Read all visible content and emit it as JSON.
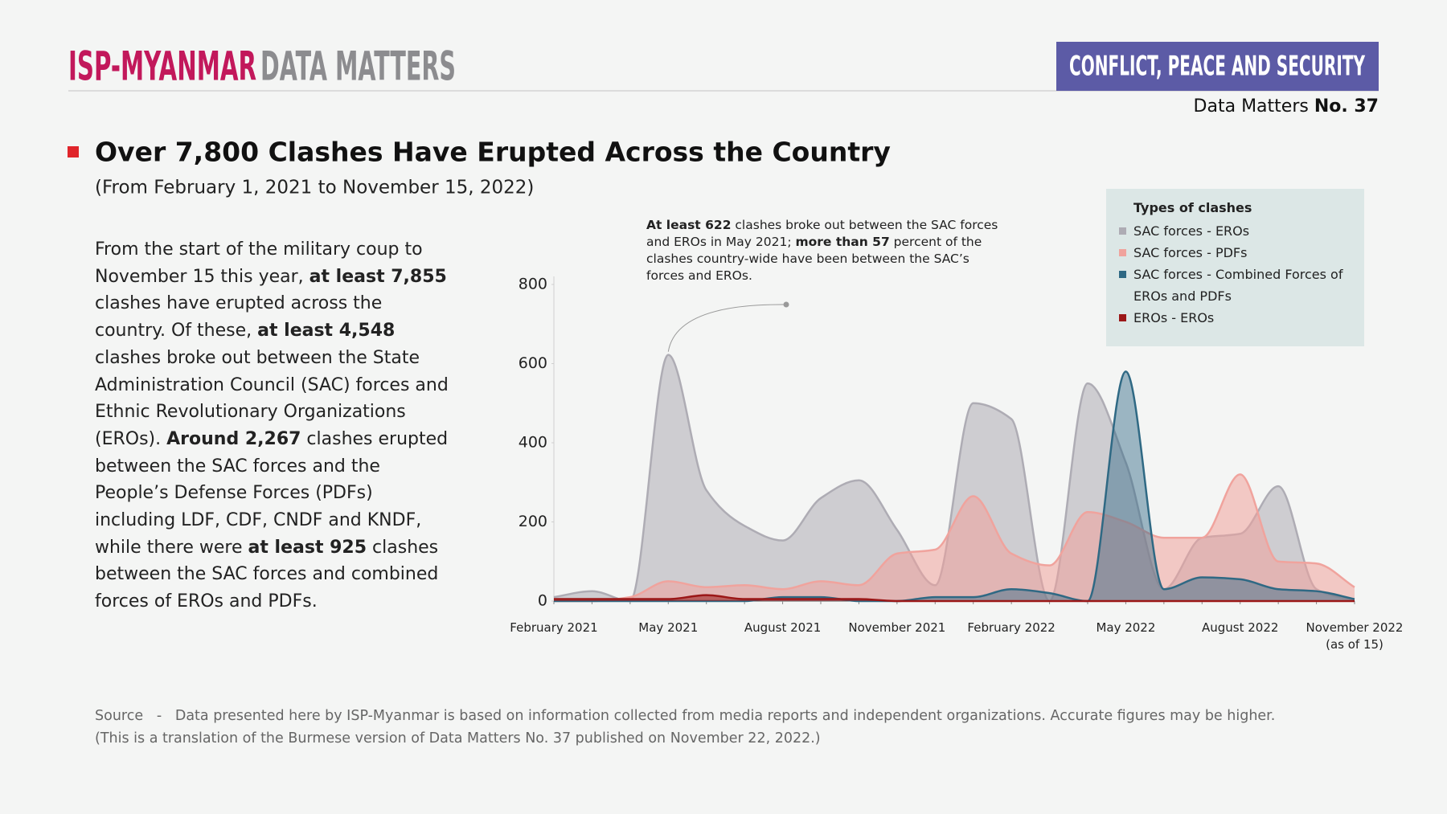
{
  "header": {
    "brand": "ISP-MYANMAR",
    "brand_sub": "DATA MATTERS",
    "badge": "CONFLICT, PEACE AND SECURITY",
    "issue_prefix": "Data Matters",
    "issue_number": "No. 37"
  },
  "body": [
    "From the start of the military coup to November 15 this year, ",
    "at least 7,855",
    " clashes have erupted across the country. Of these, ",
    "at least 4,548",
    " clashes broke out between the State Administration Council (SAC) forces and Ethnic Revolutionary Organizations (EROs). ",
    "Around 2,267",
    " clashes erupted between the SAC forces and the People’s Defense Forces (PDFs) including LDF, CDF, CNDF and KNDF, while there were ",
    "at least 925",
    " clashes between the SAC forces and combined forces of EROs and PDFs."
  ],
  "source": {
    "label": "Source",
    "dash": "-",
    "text": "Data presented here by ISP-Myanmar is based on information collected from media reports and independent organizations. Accurate figures may be higher.",
    "note": "(This is a translation of the Burmese version of Data Matters No. 37 published on November 22, 2022.)"
  },
  "chart_data": {
    "type": "area",
    "title": "Over 7,800 Clashes Have Erupted Across the Country",
    "subtitle": "(From February 1, 2021 to November 15, 2022)",
    "annotation": [
      "At least 622",
      " clashes broke out between the SAC forces and EROs in May 2021; ",
      "more than 57",
      " percent of the clashes country-wide have been between the SAC’s forces and EROs."
    ],
    "legend_title": "Types of clashes",
    "categories": [
      "February 2021",
      null,
      null,
      "May 2021",
      null,
      null,
      "August 2021",
      null,
      null,
      "November 2021",
      null,
      null,
      "February 2022",
      null,
      null,
      "May 2022",
      null,
      null,
      "August 2022",
      null,
      null,
      "November 2022 (as of 15)"
    ],
    "ylim": [
      0,
      800
    ],
    "yticks": [
      0,
      200,
      400,
      600,
      800
    ],
    "grid": false,
    "series": [
      {
        "name": "SAC forces - EROs",
        "color": "#aeacb4",
        "values": [
          10,
          25,
          0,
          622,
          280,
          190,
          153,
          260,
          305,
          180,
          40,
          500,
          460,
          0,
          550,
          350,
          30,
          160,
          170,
          290,
          30,
          0
        ]
      },
      {
        "name": "SAC forces - PDFs",
        "color": "#f0a39d",
        "values": [
          0,
          0,
          10,
          50,
          35,
          40,
          30,
          50,
          40,
          120,
          130,
          265,
          120,
          90,
          225,
          200,
          160,
          160,
          320,
          100,
          95,
          35
        ]
      },
      {
        "name": "SAC forces - Combined Forces of EROs and PDFs",
        "color": "#2f6984",
        "values": [
          0,
          0,
          0,
          0,
          0,
          0,
          10,
          10,
          0,
          0,
          10,
          10,
          30,
          20,
          0,
          580,
          30,
          60,
          55,
          30,
          25,
          5
        ]
      },
      {
        "name": "EROs - EROs",
        "color": "#9b1717",
        "values": [
          5,
          5,
          5,
          5,
          15,
          5,
          5,
          5,
          5,
          0,
          0,
          0,
          0,
          0,
          0,
          0,
          0,
          0,
          0,
          0,
          0,
          0
        ]
      }
    ]
  }
}
